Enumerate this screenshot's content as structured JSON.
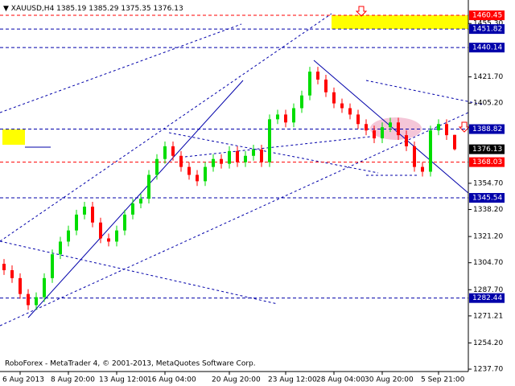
{
  "chart_data": {
    "type": "candlestick",
    "symbol": "XAUUSD,H4",
    "footer": "RoboForex - MetaTrader 4, © 2001-2013, MetaQuotes Software Corp.",
    "bull_color": "#00dd00",
    "bear_color": "#ff0000",
    "categories": [
      null,
      null,
      "6 Aug 2013",
      null,
      null,
      null,
      null,
      null,
      "8 Aug 20:00",
      null,
      null,
      null,
      null,
      null,
      "13 Aug 12:00",
      null,
      null,
      null,
      null,
      null,
      "16 Aug 04:00",
      null,
      null,
      null,
      null,
      null,
      null,
      null,
      "20 Aug 20:00",
      null,
      null,
      null,
      null,
      null,
      null,
      "23 Aug 12:00",
      null,
      null,
      null,
      null,
      null,
      "28 Aug 04:00",
      null,
      null,
      null,
      null,
      null,
      "30 Aug 20:00",
      null,
      null,
      null,
      null,
      null,
      null,
      "5 Sep 21:00",
      null,
      null
    ],
    "open": [
      1304,
      1300,
      1295,
      1285,
      1278,
      1283,
      1295,
      1310,
      1318,
      1325,
      1335,
      1340,
      1330,
      1320,
      1318,
      1325,
      1335,
      1342,
      1345,
      1360,
      1370,
      1378,
      1372,
      1365,
      1360,
      1356,
      1365,
      1370,
      1367,
      1375,
      1368,
      1372,
      1376,
      1368,
      1395,
      1398,
      1393,
      1402,
      1410,
      1425,
      1420,
      1412,
      1405,
      1402,
      1398,
      1392,
      1388,
      1383,
      1390,
      1393,
      1385,
      1378,
      1365,
      1362,
      1388,
      1392,
      1385.19
    ],
    "high": [
      1307,
      1303,
      1298,
      1288,
      1286,
      1298,
      1313,
      1321,
      1328,
      1338,
      1343,
      1343,
      1333,
      1323,
      1328,
      1338,
      1345,
      1348,
      1363,
      1373,
      1381,
      1381,
      1375,
      1368,
      1363,
      1368,
      1373,
      1373,
      1378,
      1378,
      1375,
      1379,
      1379,
      1398,
      1401,
      1401,
      1405,
      1413,
      1428,
      1428,
      1423,
      1415,
      1408,
      1405,
      1401,
      1395,
      1391,
      1393,
      1396,
      1396,
      1388,
      1381,
      1368,
      1391,
      1395,
      1395,
      1385.29
    ],
    "low": [
      1297,
      1292,
      1282,
      1275,
      1275,
      1280,
      1292,
      1307,
      1315,
      1322,
      1332,
      1327,
      1317,
      1315,
      1315,
      1322,
      1332,
      1339,
      1342,
      1357,
      1367,
      1369,
      1362,
      1357,
      1353,
      1353,
      1362,
      1364,
      1364,
      1365,
      1365,
      1369,
      1365,
      1365,
      1392,
      1390,
      1390,
      1399,
      1407,
      1417,
      1409,
      1402,
      1399,
      1395,
      1389,
      1385,
      1380,
      1380,
      1387,
      1382,
      1375,
      1362,
      1359,
      1359,
      1385,
      1382,
      1375.35
    ],
    "close": [
      1300,
      1295,
      1285,
      1278,
      1283,
      1295,
      1310,
      1318,
      1325,
      1335,
      1340,
      1330,
      1320,
      1318,
      1325,
      1335,
      1342,
      1345,
      1360,
      1370,
      1378,
      1372,
      1365,
      1360,
      1356,
      1365,
      1370,
      1367,
      1375,
      1368,
      1372,
      1376,
      1368,
      1395,
      1398,
      1393,
      1402,
      1410,
      1425,
      1420,
      1412,
      1405,
      1402,
      1398,
      1392,
      1388,
      1383,
      1390,
      1393,
      1385,
      1378,
      1365,
      1362,
      1388,
      1392,
      1385,
      1376.13
    ],
    "ylim": [
      1236.2,
      1470.1
    ],
    "yticks": [
      {
        "value": 1455.3,
        "label": "1455.30"
      },
      {
        "value": 1421.7,
        "label": "1421.70"
      },
      {
        "value": 1405.2,
        "label": "1405.20"
      },
      {
        "value": 1354.7,
        "label": "1354.70"
      },
      {
        "value": 1338.2,
        "label": "1338.20"
      },
      {
        "value": 1321.2,
        "label": "1321.20"
      },
      {
        "value": 1304.7,
        "label": "1304.70"
      },
      {
        "value": 1287.7,
        "label": "1287.70"
      },
      1271.21,
      {
        "value": 1254.2,
        "label": "1254.20"
      },
      {
        "value": 1237.7,
        "label": "1237.70"
      }
    ],
    "levels": [
      {
        "value": 1460.45,
        "color": "#ff0000"
      },
      {
        "value": 1451.82,
        "color": "#0000aa"
      },
      {
        "value": 1440.14,
        "color": "#0000aa"
      },
      {
        "value": 1388.82,
        "color": "#0000aa"
      },
      {
        "value": 1368.03,
        "color": "#ff0000"
      },
      {
        "value": 1345.54,
        "color": "#0000aa"
      },
      {
        "value": 1282.44,
        "color": "#0000aa"
      }
    ]
  }
}
